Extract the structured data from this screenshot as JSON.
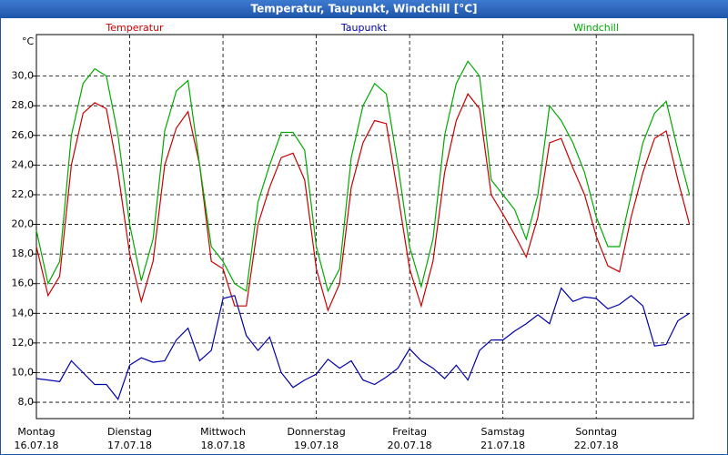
{
  "chart_data": {
    "type": "line",
    "title": "Temperatur, Taupunkt, Windchill [°C]",
    "y_label": "°C",
    "x": [
      0,
      3,
      6,
      9,
      12,
      15,
      18,
      21,
      24,
      27,
      30,
      33,
      36,
      39,
      42,
      45,
      48,
      51,
      54,
      57,
      60,
      63,
      66,
      69,
      72,
      75,
      78,
      81,
      84,
      87,
      90,
      93,
      96,
      99,
      102,
      105,
      108,
      111,
      114,
      117,
      120,
      123,
      126,
      129,
      132,
      135,
      138,
      141,
      144,
      147,
      150,
      153,
      156,
      159,
      162,
      165,
      168
    ],
    "xlim": [
      0,
      169
    ],
    "xticks": [
      {
        "value": 0,
        "label": "Montag",
        "date": "16.07.18"
      },
      {
        "value": 24,
        "label": "Dienstag",
        "date": "17.07.18"
      },
      {
        "value": 48,
        "label": "Mittwoch",
        "date": "18.07.18"
      },
      {
        "value": 72,
        "label": "Donnerstag",
        "date": "19.07.18"
      },
      {
        "value": 96,
        "label": "Freitag",
        "date": "20.07.18"
      },
      {
        "value": 120,
        "label": "Samstag",
        "date": "21.07.18"
      },
      {
        "value": 144,
        "label": "Sonntag",
        "date": "22.07.18"
      }
    ],
    "ylim": [
      6.9,
      32.8
    ],
    "yticks": [
      {
        "value": 8,
        "label": "8,0"
      },
      {
        "value": 10,
        "label": "10,0"
      },
      {
        "value": 12,
        "label": "12,0"
      },
      {
        "value": 14,
        "label": "14,0"
      },
      {
        "value": 16,
        "label": "16,0"
      },
      {
        "value": 18,
        "label": "18,0"
      },
      {
        "value": 20,
        "label": "20,0"
      },
      {
        "value": 22,
        "label": "22,0"
      },
      {
        "value": 24,
        "label": "24,0"
      },
      {
        "value": 26,
        "label": "26,0"
      },
      {
        "value": 28,
        "label": "28,0"
      },
      {
        "value": 30,
        "label": "30,0"
      }
    ],
    "grid": true,
    "series": [
      {
        "name": "Temperatur",
        "color": "#cc0000",
        "values": [
          18.5,
          15.2,
          16.5,
          24,
          27.5,
          28.2,
          27.8,
          23.5,
          18,
          14.8,
          17.5,
          24,
          26.5,
          27.6,
          24,
          17.5,
          17,
          14.5,
          14.5,
          20,
          22.5,
          24.5,
          24.8,
          23,
          17,
          14.2,
          16,
          22.5,
          25.5,
          27,
          26.8,
          22,
          17,
          14.5,
          17.5,
          23.5,
          27,
          28.8,
          27.8,
          22,
          20.7,
          19.3,
          17.8,
          20.5,
          25.5,
          25.8,
          23.8,
          22,
          19.2,
          17.2,
          16.8,
          20.5,
          23.5,
          25.8,
          26.3,
          23,
          20
        ]
      },
      {
        "name": "Taupunkt",
        "color": "#0000aa",
        "values": [
          9.6,
          9.5,
          9.4,
          10.8,
          10,
          9.2,
          9.2,
          8.2,
          10.5,
          11,
          10.7,
          10.8,
          12.2,
          13,
          10.8,
          11.5,
          15,
          15.2,
          12.5,
          11.5,
          12.4,
          10,
          9,
          9.5,
          9.9,
          10.9,
          10.3,
          10.8,
          9.5,
          9.2,
          9.7,
          10.3,
          11.6,
          10.8,
          10.3,
          9.6,
          10.5,
          9.5,
          11.5,
          12.2,
          12.2,
          12.8,
          13.3,
          13.9,
          13.3,
          15.7,
          14.8,
          15.1,
          15,
          14.3,
          14.6,
          15.2,
          14.5,
          11.8,
          11.9,
          13.5,
          14
        ]
      },
      {
        "name": "Windchill",
        "color": "#00aa00",
        "values": [
          19.6,
          16,
          17.5,
          26,
          29.5,
          30.5,
          30,
          26,
          20,
          16.2,
          19,
          26.3,
          29,
          29.7,
          24,
          18.5,
          17.5,
          16,
          15.5,
          21.5,
          24,
          26.2,
          26.2,
          25,
          18.5,
          15.5,
          17,
          24.5,
          28,
          29.5,
          28.8,
          24,
          18.5,
          15.8,
          19,
          26,
          29.5,
          31,
          30,
          23,
          22,
          21,
          19,
          22,
          28,
          27,
          25.5,
          23.5,
          20.5,
          18.5,
          18.5,
          22,
          25.5,
          27.5,
          28.3,
          25,
          22
        ]
      }
    ]
  }
}
